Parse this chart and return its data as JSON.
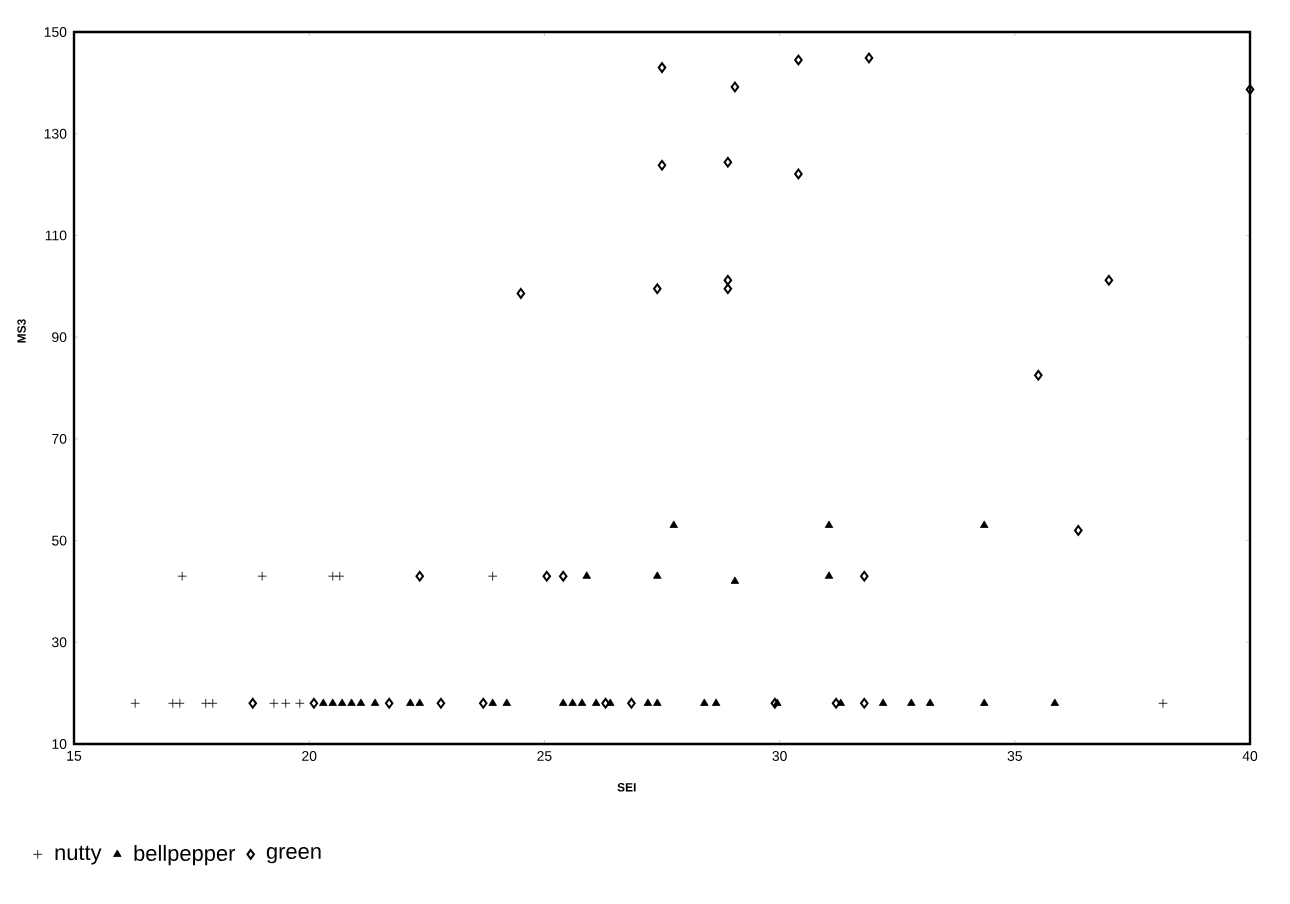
{
  "chart_data": {
    "type": "scatter",
    "xlabel": "SEI",
    "ylabel": "MS3",
    "xlim": [
      15,
      40
    ],
    "ylim": [
      10,
      150
    ],
    "xticks": [
      15,
      20,
      25,
      30,
      35,
      40
    ],
    "yticks": [
      10,
      30,
      50,
      70,
      90,
      110,
      130,
      150
    ],
    "grid": false,
    "legend": "bottom",
    "series": [
      {
        "name": "nutty",
        "color": "#000000",
        "marker": "cross",
        "x": [
          17.3,
          19.0,
          20.5,
          20.65,
          23.9,
          16.3,
          17.1,
          17.25,
          17.8,
          17.95,
          19.25,
          19.5,
          19.8,
          38.15
        ],
        "values": [
          43,
          43,
          43,
          43,
          43,
          18,
          18,
          18,
          18,
          18,
          18,
          18,
          18,
          18
        ]
      },
      {
        "name": "bellpepper",
        "color": "#000000",
        "marker": "triangle",
        "x": [
          25.9,
          27.4,
          29.05,
          31.05,
          27.75,
          31.05,
          34.35,
          20.3,
          20.5,
          20.7,
          20.9,
          21.1,
          21.4,
          22.15,
          22.35,
          23.9,
          24.2,
          25.4,
          25.6,
          25.8,
          26.1,
          26.4,
          27.2,
          27.4,
          28.4,
          28.65,
          29.95,
          31.3,
          32.2,
          32.8,
          33.2,
          34.35,
          35.85
        ],
        "values": [
          43,
          43,
          42,
          43,
          53,
          53,
          53,
          18,
          18,
          18,
          18,
          18,
          18,
          18,
          18,
          18,
          18,
          18,
          18,
          18,
          18,
          18,
          18,
          18,
          18,
          18,
          18,
          18,
          18,
          18,
          18,
          18,
          18
        ]
      },
      {
        "name": "green",
        "color": "#000000",
        "marker": "diamond",
        "x": [
          18.8,
          20.1,
          21.7,
          22.8,
          23.7,
          26.3,
          26.85,
          29.9,
          31.2,
          31.8,
          22.35,
          25.05,
          25.4,
          31.8,
          36.35,
          24.5,
          27.4,
          27.5,
          29.05,
          30.4,
          31.9,
          40.0,
          27.5,
          28.9,
          30.4,
          28.9,
          28.9,
          37.0,
          35.5
        ],
        "values": [
          18,
          18,
          18,
          18,
          18,
          18,
          18,
          18,
          18,
          18,
          43,
          43,
          43,
          43,
          52,
          98.6,
          99.5,
          143,
          139.2,
          144.5,
          144.9,
          138.7,
          123.8,
          124.4,
          122.1,
          101.2,
          99.5,
          101.2,
          82.5
        ]
      }
    ]
  }
}
